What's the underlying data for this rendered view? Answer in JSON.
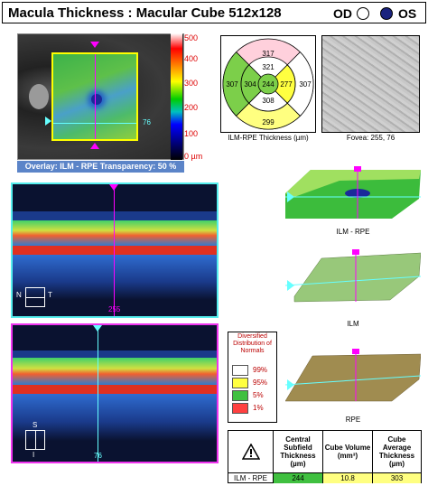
{
  "header": {
    "title": "Macula Thickness : Macular Cube 512x128",
    "od_label": "OD",
    "os_label": "OS"
  },
  "overlay": {
    "caption": "Overlay: ILM - RPE  Transparency: 50 %",
    "scan_line_number": "76"
  },
  "scale": {
    "ticks": [
      "500",
      "400",
      "300",
      "200",
      "100",
      "0 µm"
    ]
  },
  "etdrs": {
    "caption": "ILM-RPE Thickness (µm)",
    "values": {
      "outer_top": "317",
      "inner_top": "321",
      "outer_left": "307",
      "inner_left": "304",
      "center": "244",
      "inner_right": "277",
      "outer_right": "307",
      "inner_bottom": "308",
      "outer_bottom": "299"
    }
  },
  "fovea": {
    "caption": "Fovea: 255, 76"
  },
  "oct1": {
    "slice": "255",
    "n_label": "N",
    "t_label": "T"
  },
  "oct2": {
    "slice": "76",
    "s_label": "S",
    "i_label": "I"
  },
  "maps3d": {
    "ilm_rpe": "ILM - RPE",
    "ilm": "ILM",
    "rpe": "RPE"
  },
  "legend": {
    "title": "Diversified Distribution of Normals",
    "items": [
      {
        "label": "99%",
        "color": "#ffffff"
      },
      {
        "label": "95%",
        "color": "#ffff40"
      },
      {
        "label": "5%",
        "color": "#40c040"
      },
      {
        "label": "1%",
        "color": "#ff4040"
      }
    ]
  },
  "table": {
    "headers": [
      "Central Subfield Thickness (µm)",
      "Cube Volume (mm³)",
      "Cube Average Thickness (µm)"
    ],
    "row_label": "ILM - RPE",
    "values": [
      "244",
      "10.8",
      "303"
    ],
    "colors": [
      "#40c040",
      "#ffff80",
      "#ffff80"
    ]
  }
}
